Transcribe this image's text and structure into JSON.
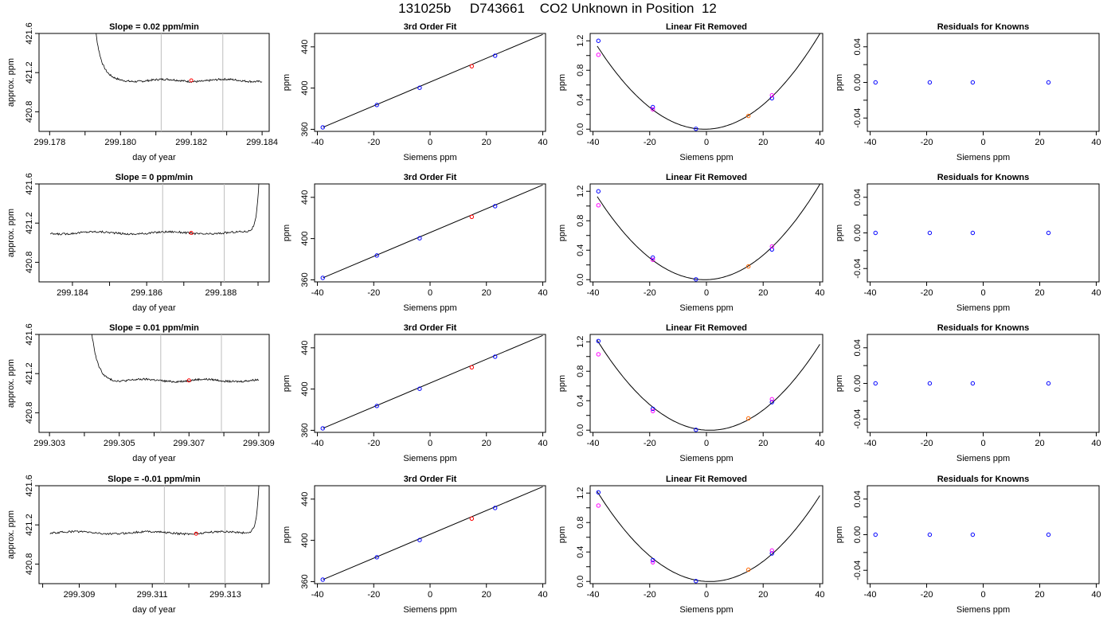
{
  "header": {
    "title": "131025b     D743661    CO2 Unknown in Position  12"
  },
  "colors": {
    "trace": "#000000",
    "known_point": "#0000ff",
    "unknown_point": "#ff0000",
    "alt_point": "#ff00ff",
    "highlight_point": "#ff6600",
    "window_line": "#bebebe"
  },
  "chart_data": [
    {
      "type": "line",
      "row": 1,
      "title": "Slope =  0.02  ppm/min",
      "xlabel": "day of year",
      "ylabel": "approx. ppm",
      "xlim": [
        299.1777,
        299.1842
      ],
      "ylim": [
        420.6,
        421.6
      ],
      "xticks": [
        299.178,
        299.18,
        299.182,
        299.184
      ],
      "xtick_labels": [
        "299.178",
        "299.180",
        "299.182",
        "299.184"
      ],
      "xticks_minor": [
        299.179,
        299.181,
        299.183
      ],
      "yticks": [
        420.8,
        421.2,
        421.6
      ],
      "ytick_labels": [
        "420.8",
        "421.2",
        "421.6"
      ],
      "window": [
        299.18115,
        299.18289
      ],
      "trace": {
        "x0": 299.1791,
        "x1": 299.184,
        "spike": "start",
        "level": 421.12
      },
      "unknown_point": {
        "x": 299.182,
        "y": 421.12
      }
    },
    {
      "type": "scatter",
      "row": 1,
      "title": "3rd Order Fit",
      "xlabel": "Siemens ppm",
      "ylabel": "ppm",
      "xlim": [
        -41,
        41
      ],
      "ylim": [
        358,
        453
      ],
      "xticks": [
        -40,
        -20,
        0,
        20,
        40
      ],
      "xtick_labels": [
        "-40",
        "-20",
        "0",
        "20",
        "40"
      ],
      "yticks": [
        360,
        400,
        440
      ],
      "ytick_labels": [
        "360",
        "400",
        "440"
      ],
      "fit_line": [
        [
          -38,
          362
        ],
        [
          40,
          452
        ]
      ],
      "points": [
        {
          "x": -38.1,
          "y": 361.9,
          "color": "known_point"
        },
        {
          "x": -18.9,
          "y": 383.6,
          "color": "known_point"
        },
        {
          "x": -3.7,
          "y": 400.3,
          "color": "known_point"
        },
        {
          "x": 14.8,
          "y": 421.2,
          "color": "unknown_point"
        },
        {
          "x": 23.1,
          "y": 431.4,
          "color": "known_point"
        }
      ]
    },
    {
      "type": "scatter",
      "row": 1,
      "title": "Linear Fit Removed",
      "xlabel": "Siemens ppm",
      "ylabel": "ppm",
      "xlim": [
        -41,
        41
      ],
      "ylim": [
        -0.03,
        1.3
      ],
      "xticks": [
        -40,
        -20,
        0,
        20,
        40
      ],
      "xtick_labels": [
        "-40",
        "-20",
        "0",
        "20",
        "40"
      ],
      "yticks": [
        0.0,
        0.4,
        0.8,
        1.2
      ],
      "ytick_labels": [
        "0.0",
        "0.4",
        "0.8",
        "1.2"
      ],
      "yticks_minor": [
        0.2,
        0.6,
        1.0
      ],
      "curve": {
        "a": 0.000786,
        "b": 0.00095,
        "x0": -38.5,
        "x1": 40
      },
      "points": [
        {
          "x": -38.1,
          "y": 1.2,
          "color": "known_point"
        },
        {
          "x": -38.1,
          "y": 1.01,
          "color": "alt_point"
        },
        {
          "x": -18.9,
          "y": 0.3,
          "color": "known_point"
        },
        {
          "x": -18.9,
          "y": 0.27,
          "color": "alt_point"
        },
        {
          "x": -3.7,
          "y": 0.005,
          "color": "known_point"
        },
        {
          "x": 14.8,
          "y": 0.18,
          "color": "highlight_point"
        },
        {
          "x": 23.1,
          "y": 0.42,
          "color": "known_point"
        },
        {
          "x": 23.1,
          "y": 0.46,
          "color": "alt_point"
        }
      ]
    },
    {
      "type": "scatter",
      "row": 1,
      "title": "Residuals for Knowns",
      "xlabel": "Siemens ppm",
      "ylabel": "ppm",
      "xlim": [
        -41,
        41
      ],
      "ylim": [
        -0.055,
        0.055
      ],
      "xticks": [
        -40,
        -20,
        0,
        20,
        40
      ],
      "xtick_labels": [
        "-40",
        "-20",
        "0",
        "20",
        "40"
      ],
      "yticks": [
        -0.04,
        0.0,
        0.04
      ],
      "ytick_labels": [
        "-0.04",
        "0.00",
        "0.04"
      ],
      "yticks_minor": [
        -0.02,
        0.02
      ],
      "points": [
        {
          "x": -38.1,
          "y": 0.0,
          "color": "known_point"
        },
        {
          "x": -18.9,
          "y": 0.0,
          "color": "known_point"
        },
        {
          "x": -3.7,
          "y": 0.0,
          "color": "known_point"
        },
        {
          "x": 23.1,
          "y": 0.0,
          "color": "known_point"
        }
      ]
    },
    {
      "type": "line",
      "row": 2,
      "title": "Slope =  0  ppm/min",
      "xlabel": "day of year",
      "ylabel": "approx. ppm",
      "xlim": [
        299.1831,
        299.1893
      ],
      "ylim": [
        420.6,
        421.6
      ],
      "xticks": [
        299.184,
        299.186,
        299.188
      ],
      "xtick_labels": [
        "299.184",
        "299.186",
        "299.188"
      ],
      "xticks_minor": [
        299.185,
        299.187,
        299.189
      ],
      "yticks": [
        420.8,
        421.2,
        421.6
      ],
      "ytick_labels": [
        "420.8",
        "421.2",
        "421.6"
      ],
      "window": [
        299.18643,
        299.18809
      ],
      "trace": {
        "x0": 299.1834,
        "x1": 299.1891,
        "spike": "end",
        "level": 421.1
      },
      "unknown_point": {
        "x": 299.1872,
        "y": 421.1
      }
    },
    {
      "type": "scatter",
      "row": 2,
      "title": "3rd Order Fit",
      "xlabel": "Siemens ppm",
      "ylabel": "ppm",
      "xlim": [
        -41,
        41
      ],
      "ylim": [
        358,
        453
      ],
      "xticks": [
        -40,
        -20,
        0,
        20,
        40
      ],
      "xtick_labels": [
        "-40",
        "-20",
        "0",
        "20",
        "40"
      ],
      "yticks": [
        360,
        400,
        440
      ],
      "ytick_labels": [
        "360",
        "400",
        "440"
      ],
      "fit_line": [
        [
          -38,
          362
        ],
        [
          40,
          452
        ]
      ],
      "points": [
        {
          "x": -38.1,
          "y": 361.9,
          "color": "known_point"
        },
        {
          "x": -18.9,
          "y": 383.6,
          "color": "known_point"
        },
        {
          "x": -3.7,
          "y": 400.3,
          "color": "known_point"
        },
        {
          "x": 14.8,
          "y": 421.1,
          "color": "unknown_point"
        },
        {
          "x": 23.1,
          "y": 431.4,
          "color": "known_point"
        }
      ]
    },
    {
      "type": "scatter",
      "row": 2,
      "title": "Linear Fit Removed",
      "xlabel": "Siemens ppm",
      "ylabel": "ppm",
      "xlim": [
        -41,
        41
      ],
      "ylim": [
        -0.03,
        1.3
      ],
      "xticks": [
        -40,
        -20,
        0,
        20,
        40
      ],
      "xtick_labels": [
        "-40",
        "-20",
        "0",
        "20",
        "40"
      ],
      "yticks": [
        0.0,
        0.4,
        0.8,
        1.2
      ],
      "ytick_labels": [
        "0.0",
        "0.4",
        "0.8",
        "1.2"
      ],
      "yticks_minor": [
        0.2,
        0.6,
        1.0
      ],
      "curve": {
        "a": 0.000786,
        "b": 0.00095,
        "x0": -38.5,
        "x1": 40
      },
      "points": [
        {
          "x": -38.1,
          "y": 1.2,
          "color": "known_point"
        },
        {
          "x": -38.1,
          "y": 1.01,
          "color": "alt_point"
        },
        {
          "x": -18.9,
          "y": 0.3,
          "color": "known_point"
        },
        {
          "x": -18.9,
          "y": 0.27,
          "color": "alt_point"
        },
        {
          "x": -3.7,
          "y": 0.005,
          "color": "known_point"
        },
        {
          "x": 14.8,
          "y": 0.18,
          "color": "highlight_point"
        },
        {
          "x": 23.1,
          "y": 0.41,
          "color": "known_point"
        },
        {
          "x": 23.1,
          "y": 0.45,
          "color": "alt_point"
        }
      ]
    },
    {
      "type": "scatter",
      "row": 2,
      "title": "Residuals for Knowns",
      "xlabel": "Siemens ppm",
      "ylabel": "ppm",
      "xlim": [
        -41,
        41
      ],
      "ylim": [
        -0.055,
        0.055
      ],
      "xticks": [
        -40,
        -20,
        0,
        20,
        40
      ],
      "xtick_labels": [
        "-40",
        "-20",
        "0",
        "20",
        "40"
      ],
      "yticks": [
        -0.04,
        0.0,
        0.04
      ],
      "ytick_labels": [
        "-0.04",
        "0.00",
        "0.04"
      ],
      "yticks_minor": [
        -0.02,
        0.02
      ],
      "points": [
        {
          "x": -38.1,
          "y": 0.0,
          "color": "known_point"
        },
        {
          "x": -18.9,
          "y": 0.0,
          "color": "known_point"
        },
        {
          "x": -3.7,
          "y": 0.0,
          "color": "known_point"
        },
        {
          "x": 23.1,
          "y": 0.0,
          "color": "known_point"
        }
      ]
    },
    {
      "type": "line",
      "row": 3,
      "title": "Slope =  0.01  ppm/min",
      "xlabel": "day of year",
      "ylabel": "approx. ppm",
      "xlim": [
        299.3027,
        299.3093
      ],
      "ylim": [
        420.6,
        421.6
      ],
      "xticks": [
        299.303,
        299.305,
        299.307,
        299.309
      ],
      "xtick_labels": [
        "299.303",
        "299.305",
        "299.307",
        "299.309"
      ],
      "xticks_minor": [
        299.304,
        299.306,
        299.308
      ],
      "yticks": [
        420.8,
        421.2,
        421.6
      ],
      "ytick_labels": [
        "420.8",
        "421.2",
        "421.6"
      ],
      "window": [
        299.30619,
        299.30793
      ],
      "trace": {
        "x0": 299.304,
        "x1": 299.309,
        "spike": "start",
        "level": 421.13
      },
      "unknown_point": {
        "x": 299.307,
        "y": 421.13
      }
    },
    {
      "type": "scatter",
      "row": 3,
      "title": "3rd Order Fit",
      "xlabel": "Siemens ppm",
      "ylabel": "ppm",
      "xlim": [
        -41,
        41
      ],
      "ylim": [
        358,
        453
      ],
      "xticks": [
        -40,
        -20,
        0,
        20,
        40
      ],
      "xtick_labels": [
        "-40",
        "-20",
        "0",
        "20",
        "40"
      ],
      "yticks": [
        360,
        400,
        440
      ],
      "ytick_labels": [
        "360",
        "400",
        "440"
      ],
      "fit_line": [
        [
          -38,
          362
        ],
        [
          40,
          452
        ]
      ],
      "points": [
        {
          "x": -38.1,
          "y": 361.9,
          "color": "known_point"
        },
        {
          "x": -18.9,
          "y": 383.6,
          "color": "known_point"
        },
        {
          "x": -3.7,
          "y": 400.3,
          "color": "known_point"
        },
        {
          "x": 14.8,
          "y": 421.1,
          "color": "unknown_point"
        },
        {
          "x": 23.1,
          "y": 431.4,
          "color": "known_point"
        }
      ]
    },
    {
      "type": "scatter",
      "row": 3,
      "title": "Linear Fit Removed",
      "xlabel": "Siemens ppm",
      "ylabel": "ppm",
      "xlim": [
        -41,
        41
      ],
      "ylim": [
        -0.03,
        1.3
      ],
      "xticks": [
        -40,
        -20,
        0,
        20,
        40
      ],
      "xtick_labels": [
        "-40",
        "-20",
        "0",
        "20",
        "40"
      ],
      "yticks": [
        0.0,
        0.4,
        0.8,
        1.2
      ],
      "ytick_labels": [
        "0.0",
        "0.4",
        "0.8",
        "1.2"
      ],
      "yticks_minor": [
        0.2,
        0.6,
        1.0
      ],
      "curve": {
        "a": 0.000775,
        "b": -0.00185,
        "x0": -38.5,
        "x1": 40
      },
      "points": [
        {
          "x": -38.1,
          "y": 1.21,
          "color": "known_point"
        },
        {
          "x": -38.1,
          "y": 1.03,
          "color": "alt_point"
        },
        {
          "x": -18.9,
          "y": 0.29,
          "color": "known_point"
        },
        {
          "x": -18.9,
          "y": 0.26,
          "color": "alt_point"
        },
        {
          "x": -3.7,
          "y": 0.005,
          "color": "known_point"
        },
        {
          "x": 14.8,
          "y": 0.16,
          "color": "highlight_point"
        },
        {
          "x": 23.1,
          "y": 0.38,
          "color": "known_point"
        },
        {
          "x": 23.1,
          "y": 0.42,
          "color": "alt_point"
        }
      ]
    },
    {
      "type": "scatter",
      "row": 3,
      "title": "Residuals for Knowns",
      "xlabel": "Siemens ppm",
      "ylabel": "ppm",
      "xlim": [
        -41,
        41
      ],
      "ylim": [
        -0.055,
        0.055
      ],
      "xticks": [
        -40,
        -20,
        0,
        20,
        40
      ],
      "xtick_labels": [
        "-40",
        "-20",
        "0",
        "20",
        "40"
      ],
      "yticks": [
        -0.04,
        0.0,
        0.04
      ],
      "ytick_labels": [
        "-0.04",
        "0.00",
        "0.04"
      ],
      "yticks_minor": [
        -0.02,
        0.02
      ],
      "points": [
        {
          "x": -38.1,
          "y": 0.0,
          "color": "known_point"
        },
        {
          "x": -18.9,
          "y": 0.0,
          "color": "known_point"
        },
        {
          "x": -3.7,
          "y": 0.0,
          "color": "known_point"
        },
        {
          "x": 23.1,
          "y": 0.0,
          "color": "known_point"
        }
      ]
    },
    {
      "type": "line",
      "row": 4,
      "title": "Slope =  -0.01  ppm/min",
      "xlabel": "day of year",
      "ylabel": "approx. ppm",
      "xlim": [
        299.3079,
        299.3142
      ],
      "ylim": [
        420.6,
        421.6
      ],
      "xticks": [
        299.309,
        299.311,
        299.313
      ],
      "xtick_labels": [
        "299.309",
        "299.311",
        "299.313"
      ],
      "xticks_minor": [
        299.308,
        299.31,
        299.312,
        299.314
      ],
      "yticks": [
        420.8,
        421.2,
        421.6
      ],
      "ytick_labels": [
        "420.8",
        "421.2",
        "421.6"
      ],
      "window": [
        299.31133,
        299.31299
      ],
      "trace": {
        "x0": 299.3082,
        "x1": 299.314,
        "spike": "end",
        "level": 421.12
      },
      "unknown_point": {
        "x": 299.3122,
        "y": 421.11
      }
    },
    {
      "type": "scatter",
      "row": 4,
      "title": "3rd Order Fit",
      "xlabel": "Siemens ppm",
      "ylabel": "ppm",
      "xlim": [
        -41,
        41
      ],
      "ylim": [
        358,
        453
      ],
      "xticks": [
        -40,
        -20,
        0,
        20,
        40
      ],
      "xtick_labels": [
        "-40",
        "-20",
        "0",
        "20",
        "40"
      ],
      "yticks": [
        360,
        400,
        440
      ],
      "ytick_labels": [
        "360",
        "400",
        "440"
      ],
      "fit_line": [
        [
          -38,
          362
        ],
        [
          40,
          452
        ]
      ],
      "points": [
        {
          "x": -38.1,
          "y": 361.9,
          "color": "known_point"
        },
        {
          "x": -18.9,
          "y": 383.6,
          "color": "known_point"
        },
        {
          "x": -3.7,
          "y": 400.3,
          "color": "known_point"
        },
        {
          "x": 14.8,
          "y": 421.1,
          "color": "unknown_point"
        },
        {
          "x": 23.1,
          "y": 431.4,
          "color": "known_point"
        }
      ]
    },
    {
      "type": "scatter",
      "row": 4,
      "title": "Linear Fit Removed",
      "xlabel": "Siemens ppm",
      "ylabel": "ppm",
      "xlim": [
        -41,
        41
      ],
      "ylim": [
        -0.03,
        1.3
      ],
      "xticks": [
        -40,
        -20,
        0,
        20,
        40
      ],
      "xtick_labels": [
        "-40",
        "-20",
        "0",
        "20",
        "40"
      ],
      "yticks": [
        0.0,
        0.4,
        0.8,
        1.2
      ],
      "ytick_labels": [
        "0.0",
        "0.4",
        "0.8",
        "1.2"
      ],
      "yticks_minor": [
        0.2,
        0.6,
        1.0
      ],
      "curve": {
        "a": 0.000775,
        "b": -0.00185,
        "x0": -38.5,
        "x1": 40
      },
      "points": [
        {
          "x": -38.1,
          "y": 1.21,
          "color": "known_point"
        },
        {
          "x": -38.1,
          "y": 1.03,
          "color": "alt_point"
        },
        {
          "x": -18.9,
          "y": 0.29,
          "color": "known_point"
        },
        {
          "x": -18.9,
          "y": 0.26,
          "color": "alt_point"
        },
        {
          "x": -3.7,
          "y": 0.005,
          "color": "known_point"
        },
        {
          "x": 14.8,
          "y": 0.16,
          "color": "highlight_point"
        },
        {
          "x": 23.1,
          "y": 0.38,
          "color": "known_point"
        },
        {
          "x": 23.1,
          "y": 0.42,
          "color": "alt_point"
        }
      ]
    },
    {
      "type": "scatter",
      "row": 4,
      "title": "Residuals for Knowns",
      "xlabel": "Siemens ppm",
      "ylabel": "ppm",
      "xlim": [
        -41,
        41
      ],
      "ylim": [
        -0.055,
        0.055
      ],
      "xticks": [
        -40,
        -20,
        0,
        20,
        40
      ],
      "xtick_labels": [
        "-40",
        "-20",
        "0",
        "20",
        "40"
      ],
      "yticks": [
        -0.04,
        0.0,
        0.04
      ],
      "ytick_labels": [
        "-0.04",
        "0.00",
        "0.04"
      ],
      "yticks_minor": [
        -0.02,
        0.02
      ],
      "points": [
        {
          "x": -38.1,
          "y": 0.0,
          "color": "known_point"
        },
        {
          "x": -18.9,
          "y": 0.0,
          "color": "known_point"
        },
        {
          "x": -3.7,
          "y": 0.0,
          "color": "known_point"
        },
        {
          "x": 23.1,
          "y": 0.0,
          "color": "known_point"
        }
      ]
    }
  ]
}
